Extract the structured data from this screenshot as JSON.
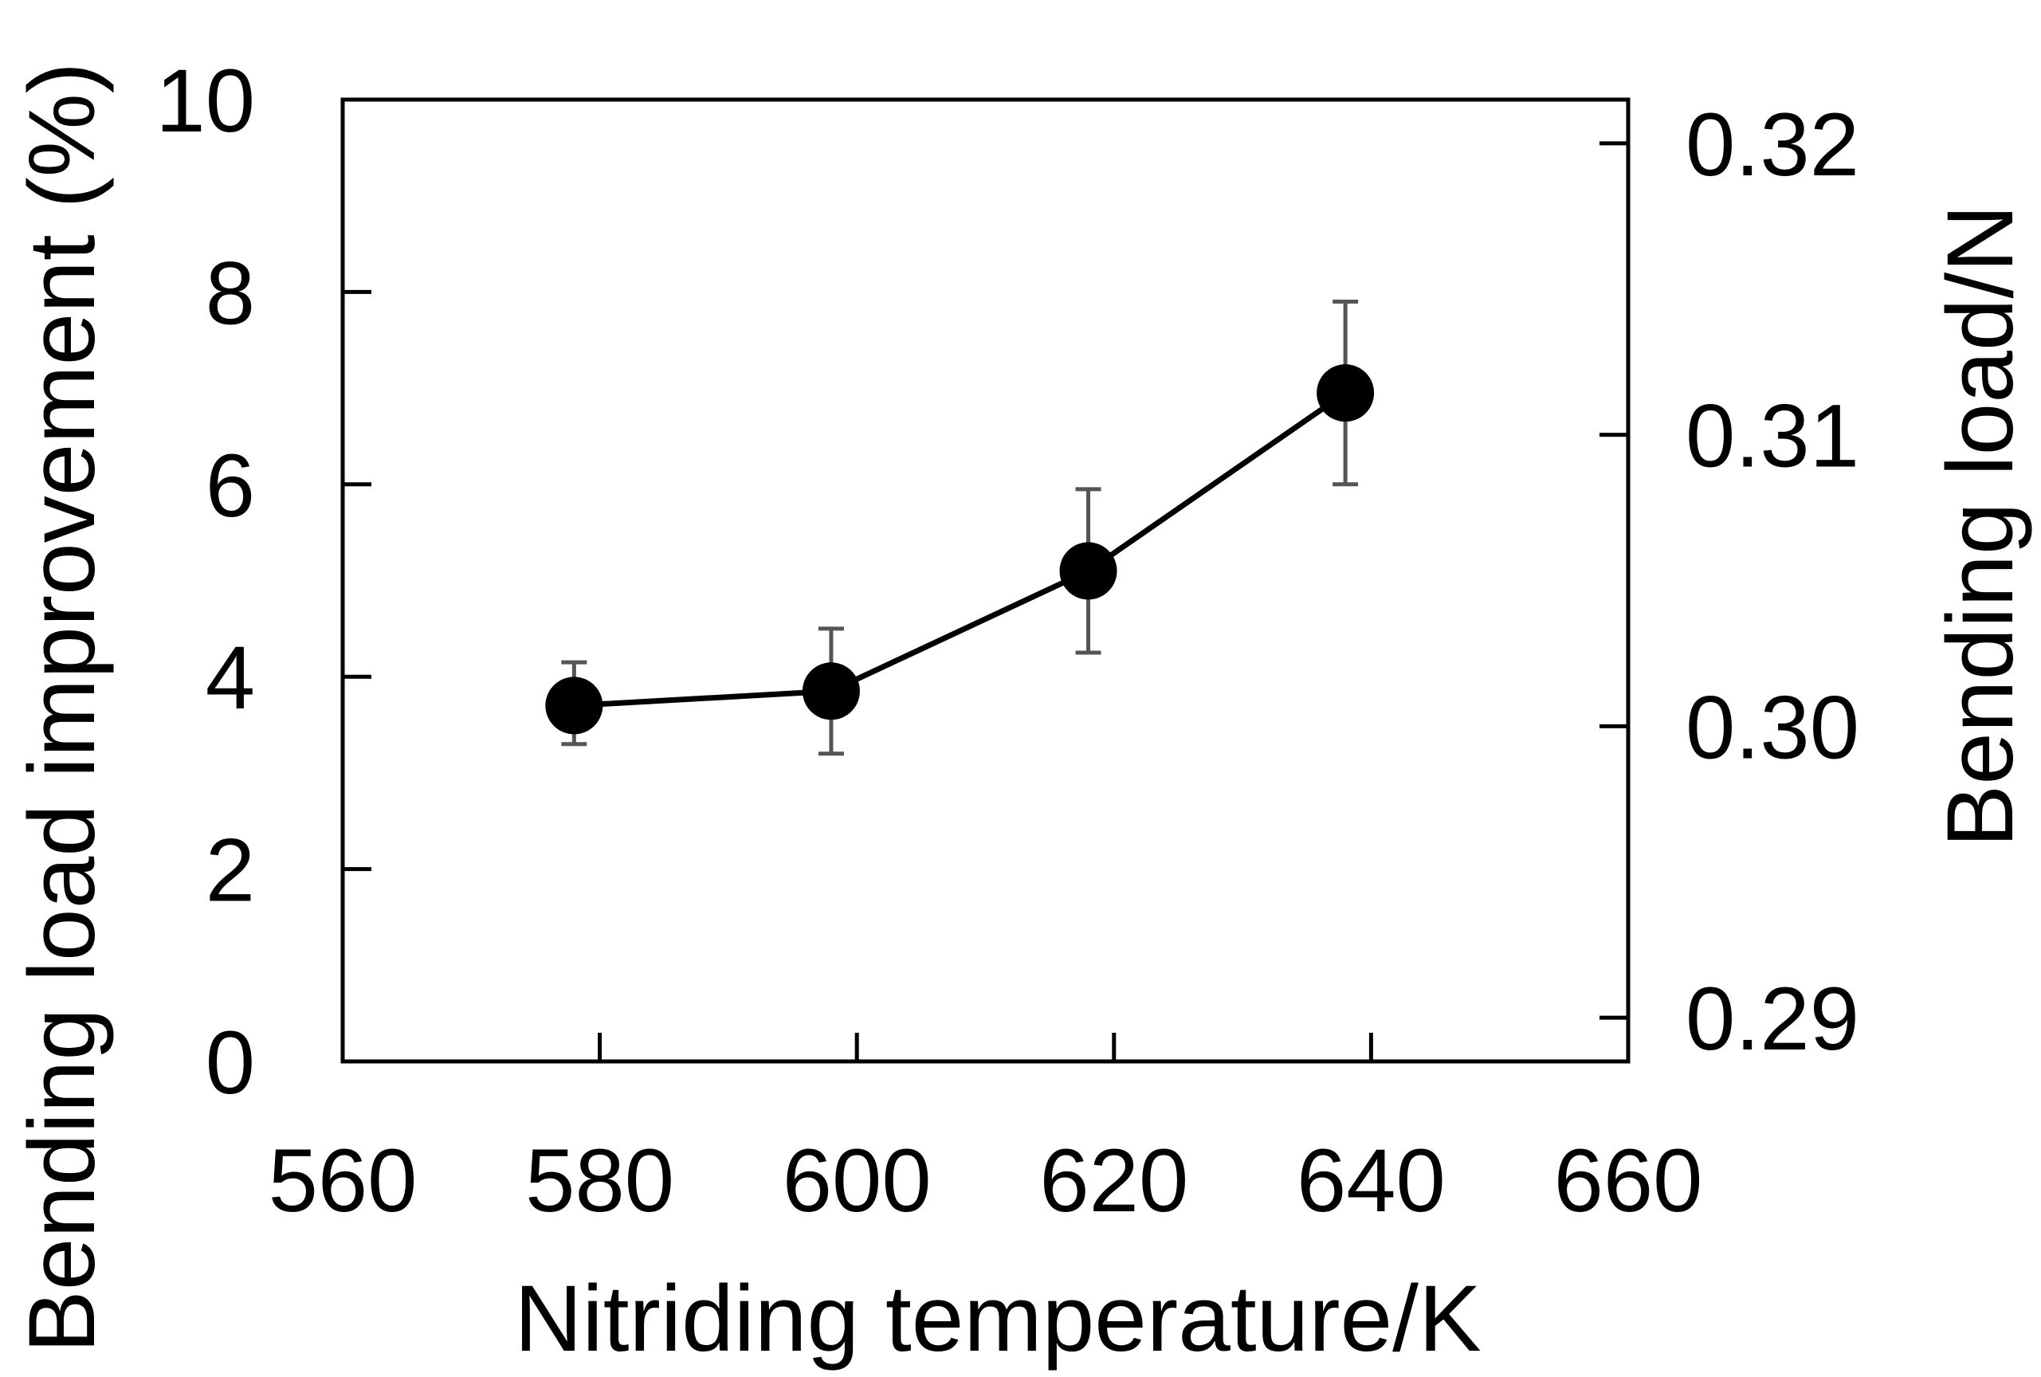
{
  "chart_data": {
    "type": "line",
    "title": "",
    "xlabel": "Nitriding temperature/K",
    "ylabel": "Bending load improvement (%)",
    "y2label": "Bending load/N",
    "xlim": [
      560,
      660
    ],
    "ylim": [
      0,
      10
    ],
    "y2lim": [
      0.2885,
      0.3215
    ],
    "xticks": [
      560,
      580,
      600,
      620,
      640,
      660
    ],
    "xtick_labels": [
      "560",
      "580",
      "600",
      "620",
      "640",
      "660"
    ],
    "yticks": [
      0,
      2,
      4,
      6,
      8,
      10
    ],
    "ytick_labels": [
      "0",
      "2",
      "4",
      "6",
      "8",
      "10"
    ],
    "y2ticks": [
      0.29,
      0.3,
      0.31,
      0.32
    ],
    "y2tick_labels": [
      "0.29",
      "0.30",
      "0.31",
      "0.32"
    ],
    "grid": false,
    "series": [
      {
        "name": "Bending load improvement",
        "x": [
          578,
          598,
          618,
          638
        ],
        "y": [
          3.7,
          3.85,
          5.1,
          6.95
        ],
        "err_low": [
          3.3,
          3.2,
          4.25,
          6.0
        ],
        "err_high": [
          4.15,
          4.5,
          5.95,
          7.9
        ],
        "marker": "circle",
        "color": "#000000",
        "error_color": "#555555"
      }
    ]
  }
}
